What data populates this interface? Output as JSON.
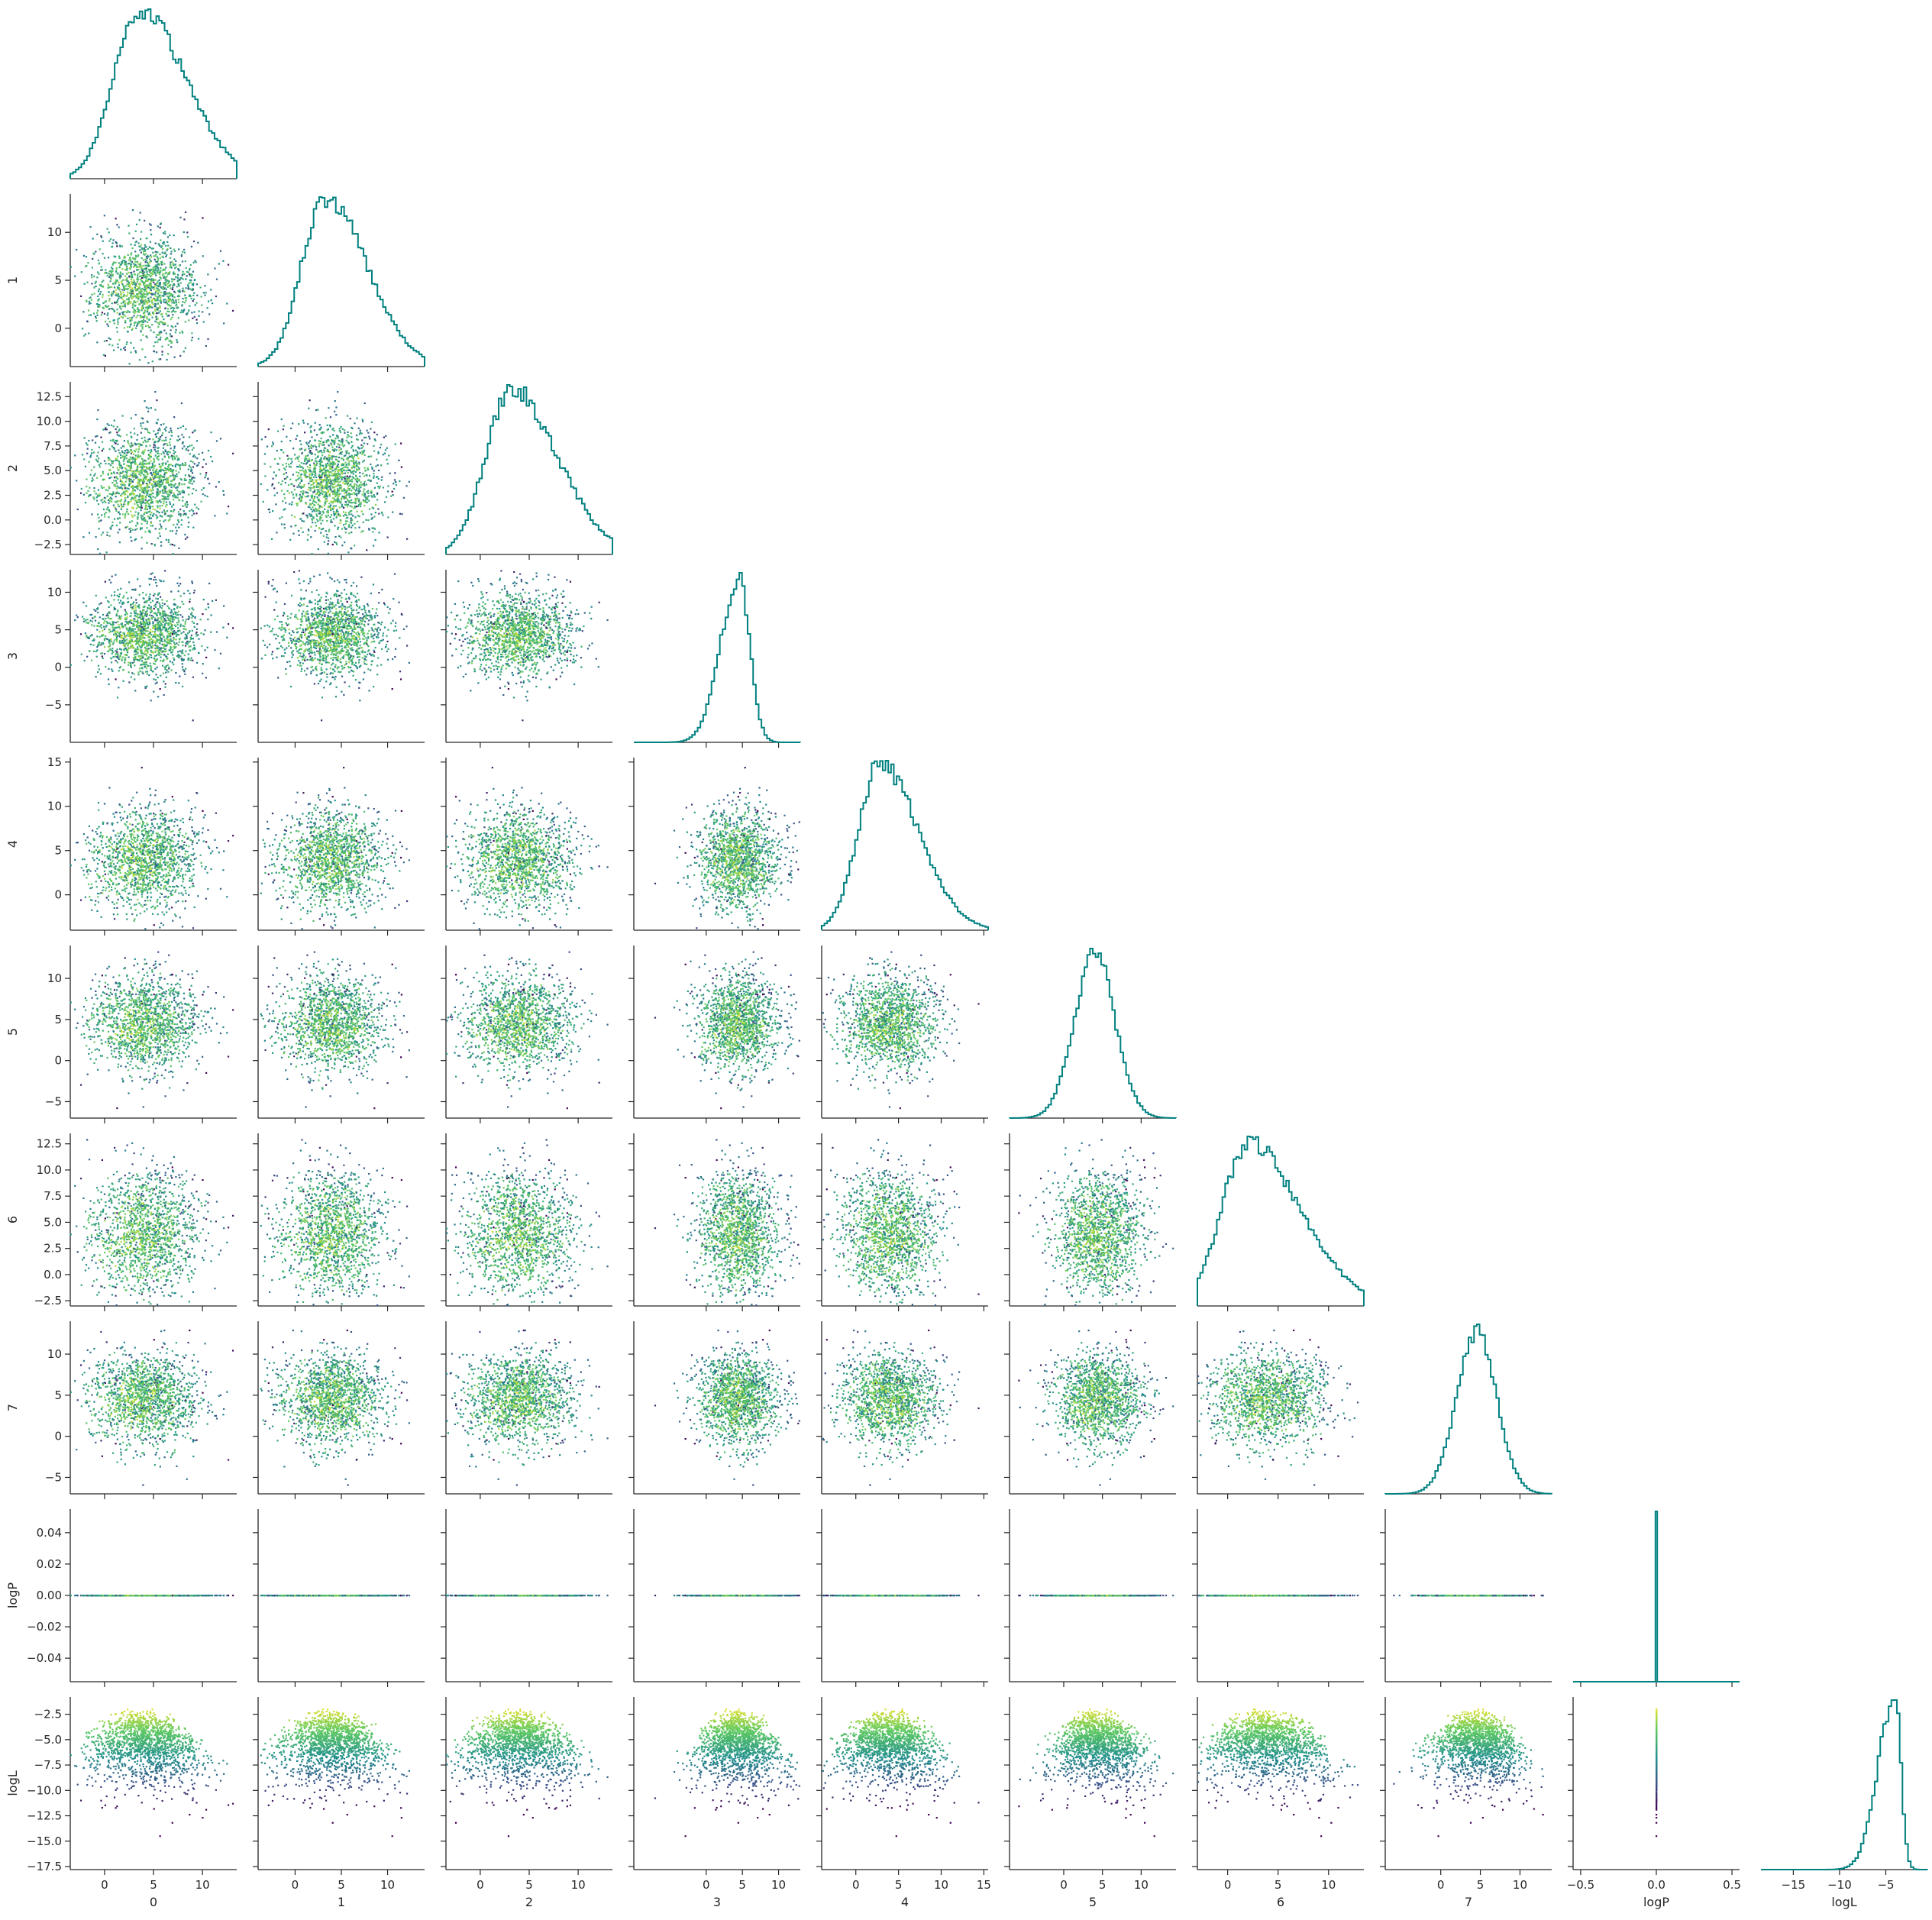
{
  "chart_data": {
    "type": "corner",
    "variables": [
      "0",
      "1",
      "2",
      "3",
      "4",
      "5",
      "6",
      "7",
      "logP",
      "logL"
    ],
    "colormap": {
      "name": "viridis",
      "colors": [
        "#440154",
        "#3b528b",
        "#21918c",
        "#5ec962",
        "#fde725"
      ],
      "color_by": "logL"
    },
    "hist_color": "#00807f",
    "axis_color": "#262626",
    "x_axes": [
      {
        "label": "0",
        "ticks": [
          0,
          5,
          10
        ],
        "tick_labels": [
          "0",
          "5",
          "10"
        ],
        "range": [
          -3.5,
          13.5
        ]
      },
      {
        "label": "1",
        "ticks": [
          0,
          5,
          10
        ],
        "tick_labels": [
          "0",
          "5",
          "10"
        ],
        "range": [
          -4,
          14
        ]
      },
      {
        "label": "2",
        "ticks": [
          0,
          5,
          10
        ],
        "tick_labels": [
          "0",
          "5",
          "10"
        ],
        "range": [
          -3.5,
          13.5
        ]
      },
      {
        "label": "3",
        "ticks": [
          0,
          5,
          10
        ],
        "tick_labels": [
          "0",
          "5",
          "10"
        ],
        "range": [
          -10,
          13
        ]
      },
      {
        "label": "4",
        "ticks": [
          0,
          5,
          10,
          15
        ],
        "tick_labels": [
          "0",
          "5",
          "10",
          "15"
        ],
        "range": [
          -4,
          15.5
        ]
      },
      {
        "label": "5",
        "ticks": [
          0,
          5,
          10
        ],
        "tick_labels": [
          "0",
          "5",
          "10"
        ],
        "range": [
          -7,
          14.5
        ]
      },
      {
        "label": "6",
        "ticks": [
          0,
          5,
          10
        ],
        "tick_labels": [
          "0",
          "5",
          "10"
        ],
        "range": [
          -3,
          13.5
        ]
      },
      {
        "label": "7",
        "ticks": [
          0,
          5,
          10
        ],
        "tick_labels": [
          "0",
          "5",
          "10"
        ],
        "range": [
          -7,
          14
        ]
      },
      {
        "label": "logP",
        "ticks": [
          -0.5,
          0,
          0.5
        ],
        "tick_labels": [
          "−0.5",
          "0.0",
          "0.5"
        ],
        "range": [
          -0.55,
          0.55
        ]
      },
      {
        "label": "logL",
        "ticks": [
          -15,
          -10,
          -5
        ],
        "tick_labels": [
          "−15",
          "−10",
          "−5"
        ],
        "range": [
          -18.5,
          -0.5
        ]
      }
    ],
    "y_axes": [
      null,
      {
        "label": "1",
        "ticks": [
          0,
          5,
          10
        ],
        "tick_labels": [
          "0",
          "5",
          "10"
        ],
        "range": [
          -4,
          14
        ]
      },
      {
        "label": "2",
        "ticks": [
          -2.5,
          0,
          2.5,
          5,
          7.5,
          10,
          12.5
        ],
        "tick_labels": [
          "−2.5",
          "0.0",
          "2.5",
          "5.0",
          "7.5",
          "10.0",
          "12.5"
        ],
        "range": [
          -3.5,
          14
        ]
      },
      {
        "label": "3",
        "ticks": [
          -5,
          0,
          5,
          10
        ],
        "tick_labels": [
          "−5",
          "0",
          "5",
          "10"
        ],
        "range": [
          -10,
          13
        ]
      },
      {
        "label": "4",
        "ticks": [
          0,
          5,
          10,
          15
        ],
        "tick_labels": [
          "0",
          "5",
          "10",
          "15"
        ],
        "range": [
          -4,
          15.5
        ]
      },
      {
        "label": "5",
        "ticks": [
          -5,
          0,
          5,
          10
        ],
        "tick_labels": [
          "−5",
          "0",
          "5",
          "10"
        ],
        "range": [
          -7,
          14
        ]
      },
      {
        "label": "6",
        "ticks": [
          -2.5,
          0,
          2.5,
          5,
          7.5,
          10,
          12.5
        ],
        "tick_labels": [
          "−2.5",
          "0.0",
          "2.5",
          "5.0",
          "7.5",
          "10.0",
          "12.5"
        ],
        "range": [
          -3,
          13.5
        ]
      },
      {
        "label": "7",
        "ticks": [
          -5,
          0,
          5,
          10
        ],
        "tick_labels": [
          "−5",
          "0",
          "5",
          "10"
        ],
        "range": [
          -7,
          14
        ]
      },
      {
        "label": "logP",
        "ticks": [
          -0.04,
          -0.02,
          0,
          0.02,
          0.04
        ],
        "tick_labels": [
          "−0.04",
          "−0.02",
          "0.00",
          "0.02",
          "0.04"
        ],
        "range": [
          -0.055,
          0.055
        ]
      },
      {
        "label": "logL",
        "ticks": [
          -17.5,
          -15,
          -12.5,
          -10,
          -7.5,
          -5,
          -2.5
        ],
        "tick_labels": [
          "−17.5",
          "−15.0",
          "−12.5",
          "−10.0",
          "−7.5",
          "−5.0",
          "−2.5"
        ],
        "range": [
          -17.8,
          -0.8
        ]
      }
    ],
    "histograms": [
      {
        "mode": 3.5,
        "width": 2.6,
        "skew": 1.8
      },
      {
        "mode": 3.2,
        "width": 2.5,
        "skew": 1.8
      },
      {
        "mode": 3.2,
        "width": 2.6,
        "skew": 1.8
      },
      {
        "mode": 4.5,
        "width": 2.5,
        "skew": 0.6
      },
      {
        "mode": 2.8,
        "width": 2.5,
        "skew": 1.8
      },
      {
        "mode": 4.0,
        "width": 2.6,
        "skew": 1.0
      },
      {
        "mode": 2.0,
        "width": 2.6,
        "skew": 2.0
      },
      {
        "mode": 4.5,
        "width": 2.5,
        "skew": 1.0
      },
      {
        "mode": 0.0,
        "width": 0.0,
        "skew": 1.0
      },
      {
        "mode": -4.0,
        "width": 1.8,
        "skew": 0.35
      }
    ],
    "scatter_clouds": {
      "points_per_panel": 1500,
      "centers": [
        3.5,
        3.5,
        3.5,
        4.0,
        3.5,
        4.0,
        3.5,
        4.0,
        0.0,
        -5.0
      ],
      "spreads": [
        2.8,
        2.8,
        2.8,
        2.8,
        2.8,
        2.8,
        2.8,
        2.8,
        0.0,
        2.2
      ],
      "logL_max": -1.5
    },
    "grid": false,
    "legend": "none"
  }
}
